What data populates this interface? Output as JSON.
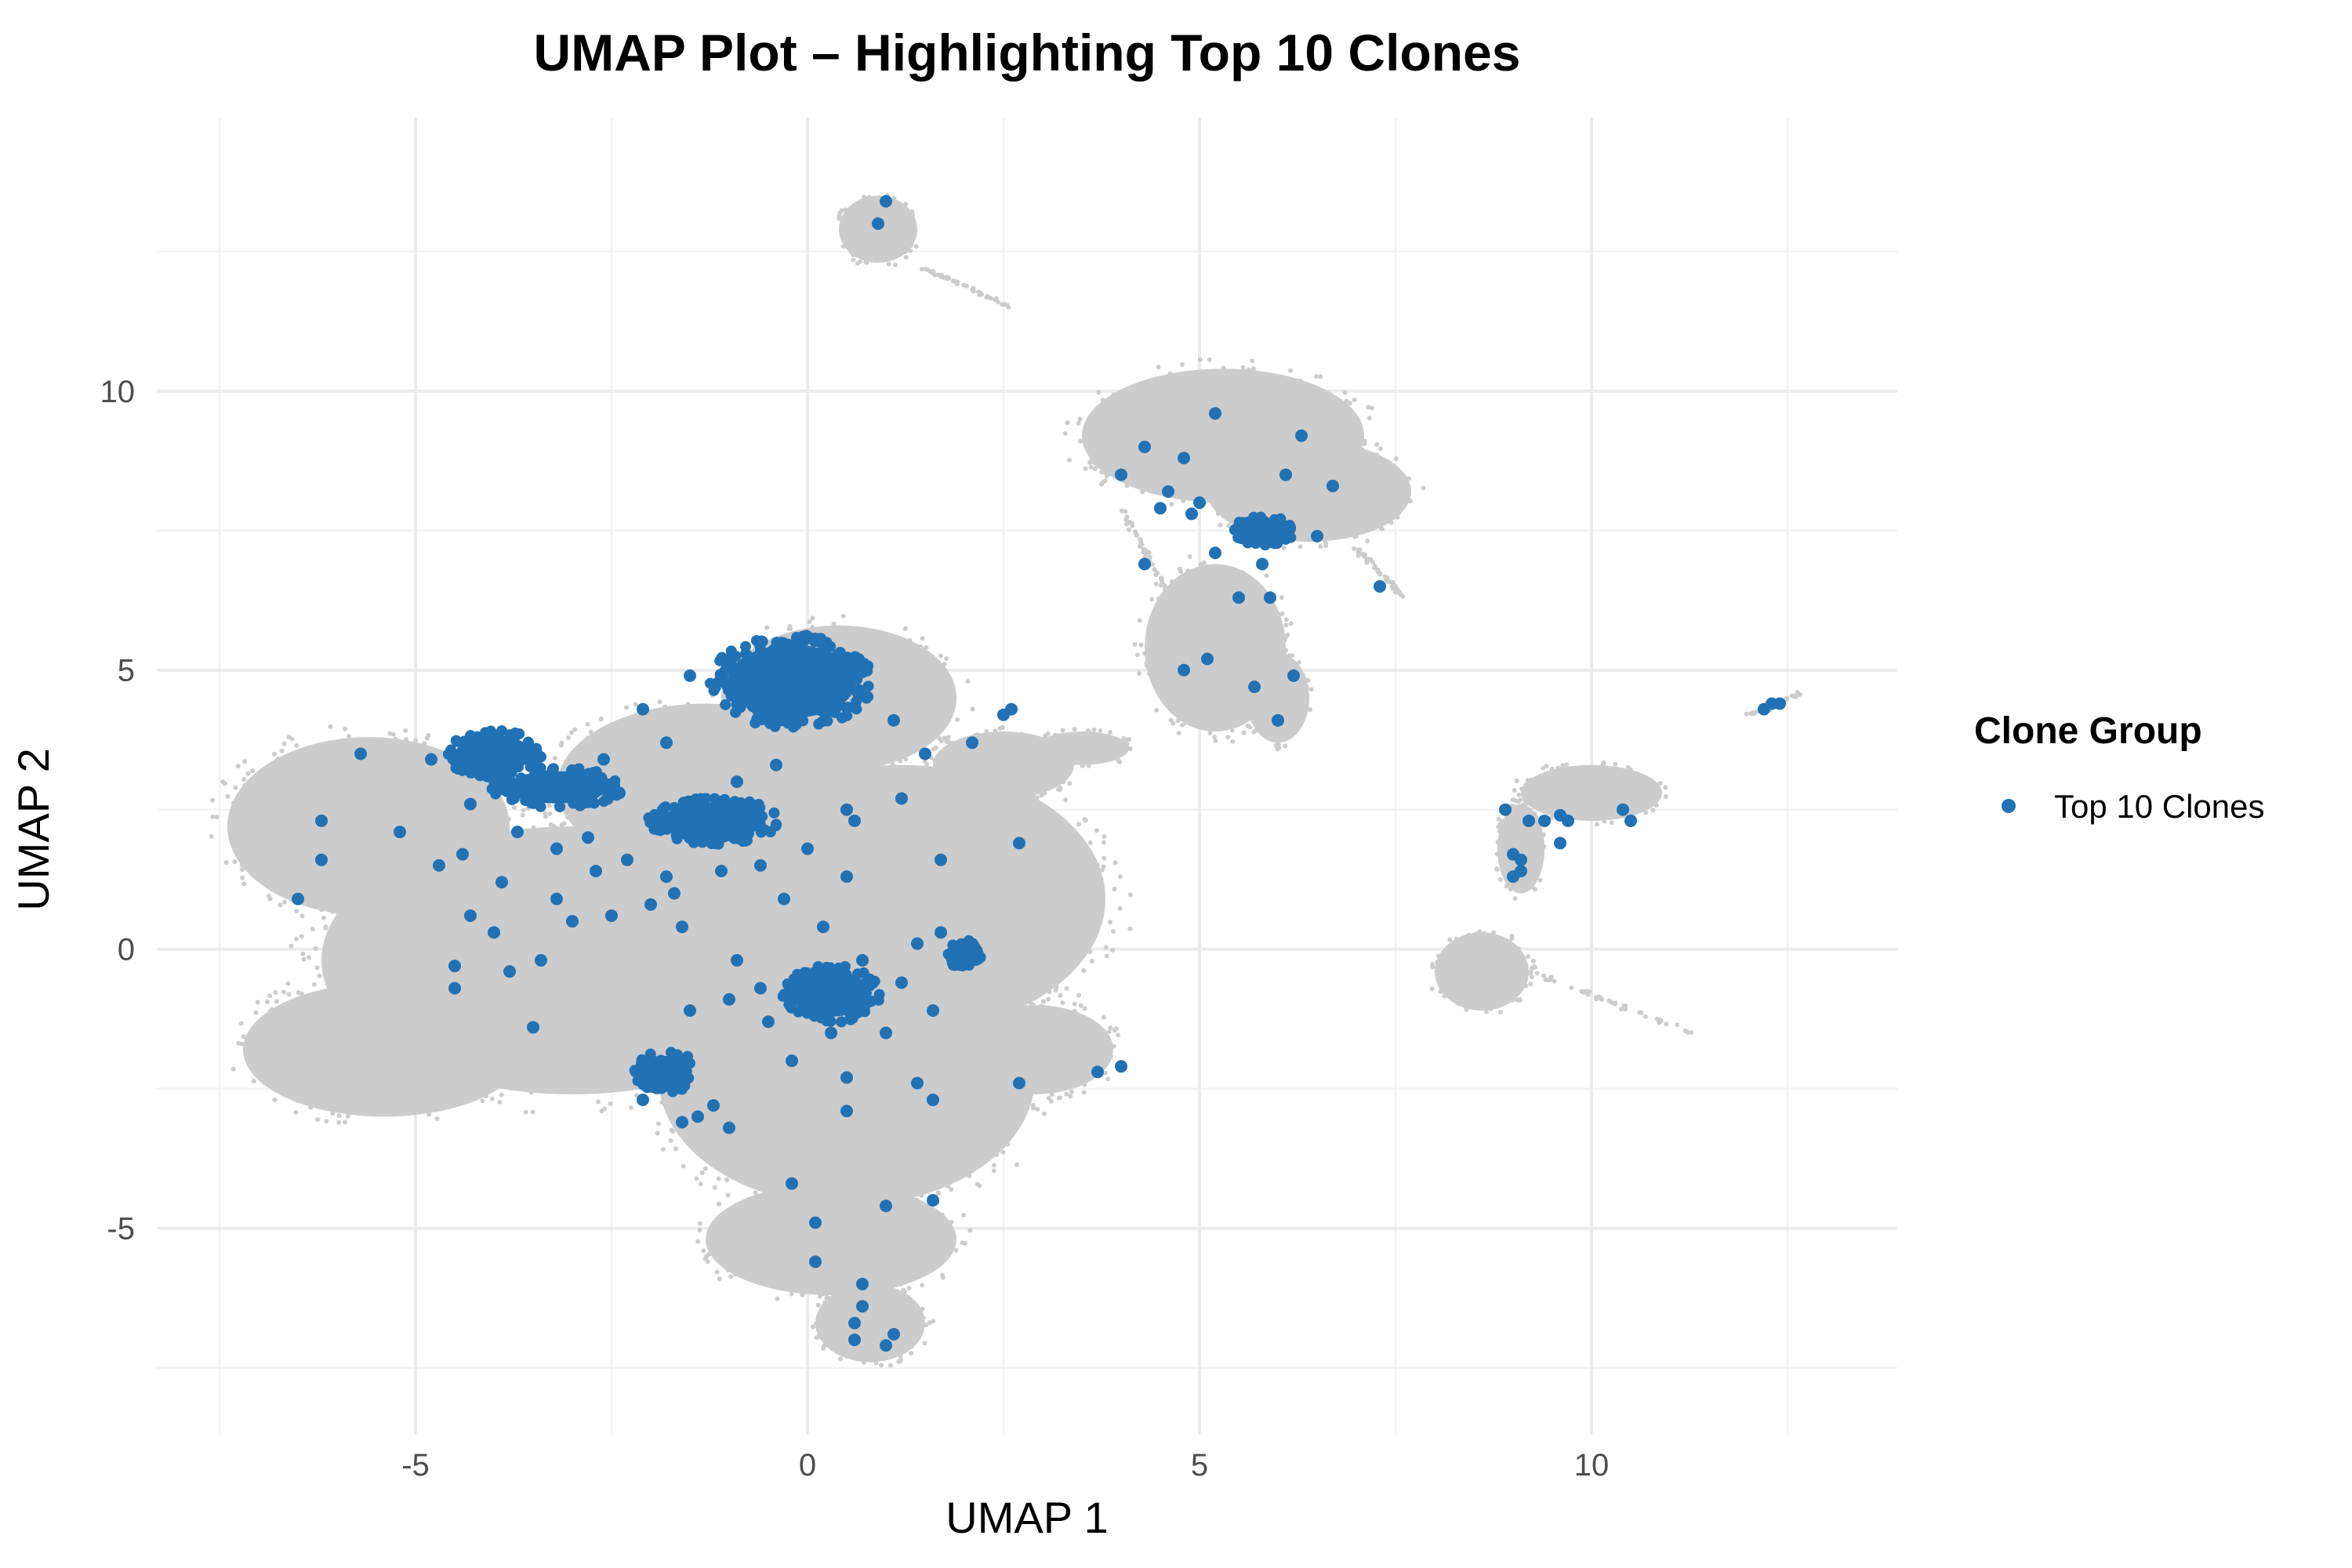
{
  "chart_data": {
    "type": "scatter",
    "title": "UMAP Plot – Highlighting Top 10 Clones",
    "xlabel": "UMAP 1",
    "ylabel": "UMAP 2",
    "xlim": [
      -8.3,
      13.9
    ],
    "ylim": [
      -8.7,
      14.9
    ],
    "x_ticks": [
      -5,
      0,
      5,
      10
    ],
    "y_ticks": [
      -5,
      0,
      5,
      10
    ],
    "grid": true,
    "legend": {
      "title": "Clone Group",
      "placement": "right",
      "entries": [
        {
          "name": "Top 10 Clones",
          "color": "#2171b5"
        }
      ]
    },
    "colors": {
      "background_cells": "#cccccc",
      "highlight": "#2171b5"
    },
    "background_regions": [
      {
        "cx": -3.0,
        "cy": -0.2,
        "rx": 3.2,
        "ry": 2.4
      },
      {
        "cx": -5.6,
        "cy": 2.2,
        "rx": 1.8,
        "ry": 1.6
      },
      {
        "cx": -5.4,
        "cy": -1.8,
        "rx": 1.8,
        "ry": 1.2
      },
      {
        "cx": 0.5,
        "cy": -2.3,
        "rx": 2.4,
        "ry": 2.3
      },
      {
        "cx": 1.2,
        "cy": 0.9,
        "rx": 2.6,
        "ry": 2.4
      },
      {
        "cx": -1.3,
        "cy": 2.9,
        "rx": 1.9,
        "ry": 1.5
      },
      {
        "cx": 0.4,
        "cy": 4.5,
        "rx": 1.5,
        "ry": 1.3
      },
      {
        "cx": 0.3,
        "cy": -5.2,
        "rx": 1.6,
        "ry": 1.0
      },
      {
        "cx": 0.8,
        "cy": -6.7,
        "rx": 0.7,
        "ry": 0.7
      },
      {
        "cx": 2.9,
        "cy": -1.8,
        "rx": 1.0,
        "ry": 0.8
      },
      {
        "cx": 2.5,
        "cy": 3.3,
        "rx": 0.9,
        "ry": 0.6
      },
      {
        "cx": 3.5,
        "cy": 3.6,
        "rx": 0.6,
        "ry": 0.3
      },
      {
        "cx": 5.3,
        "cy": 9.2,
        "rx": 1.8,
        "ry": 1.2
      },
      {
        "cx": 6.4,
        "cy": 8.2,
        "rx": 1.3,
        "ry": 0.9
      },
      {
        "cx": 4.6,
        "cy": 8.8,
        "rx": 1.0,
        "ry": 0.4
      },
      {
        "cx": 5.2,
        "cy": 5.4,
        "rx": 0.9,
        "ry": 1.5
      },
      {
        "cx": 6.0,
        "cy": 4.5,
        "rx": 0.4,
        "ry": 0.8
      },
      {
        "cx": 10.0,
        "cy": 2.8,
        "rx": 0.9,
        "ry": 0.5
      },
      {
        "cx": 9.1,
        "cy": 1.8,
        "rx": 0.3,
        "ry": 0.8
      },
      {
        "cx": 8.6,
        "cy": -0.4,
        "rx": 0.6,
        "ry": 0.7
      },
      {
        "cx": 0.9,
        "cy": 12.9,
        "rx": 0.5,
        "ry": 0.6
      }
    ],
    "background_streaks": [
      {
        "x": [
          7.0,
          7.6
        ],
        "y": [
          7.2,
          6.3
        ]
      },
      {
        "x": [
          1.5,
          2.6
        ],
        "y": [
          12.2,
          11.5
        ]
      },
      {
        "x": [
          9.2,
          11.3
        ],
        "y": [
          -0.4,
          -1.5
        ]
      },
      {
        "x": [
          12.0,
          12.7
        ],
        "y": [
          4.2,
          4.6
        ]
      },
      {
        "x": [
          4.0,
          4.6
        ],
        "y": [
          7.9,
          6.4
        ]
      }
    ],
    "highlight_clusters": [
      {
        "cx": -0.2,
        "cy": 4.8,
        "rx": 1.0,
        "ry": 0.8
      },
      {
        "cx": -4.0,
        "cy": 3.5,
        "rx": 0.6,
        "ry": 0.4
      },
      {
        "cx": -3.2,
        "cy": 2.9,
        "rx": 0.8,
        "ry": 0.35
      },
      {
        "cx": -1.2,
        "cy": 2.3,
        "rx": 0.8,
        "ry": 0.4
      },
      {
        "cx": -1.8,
        "cy": -2.2,
        "rx": 0.4,
        "ry": 0.35
      },
      {
        "cx": 0.3,
        "cy": -0.8,
        "rx": 0.6,
        "ry": 0.5
      },
      {
        "cx": 2.0,
        "cy": -0.1,
        "rx": 0.2,
        "ry": 0.25
      },
      {
        "cx": 5.8,
        "cy": 7.5,
        "rx": 0.4,
        "ry": 0.25
      }
    ],
    "highlight_points": [
      {
        "x": 1.0,
        "y": 13.4
      },
      {
        "x": 0.9,
        "y": 13.0
      },
      {
        "x": 5.2,
        "y": 9.6
      },
      {
        "x": 4.3,
        "y": 9.0
      },
      {
        "x": 6.3,
        "y": 9.2
      },
      {
        "x": 4.0,
        "y": 8.5
      },
      {
        "x": 4.8,
        "y": 8.8
      },
      {
        "x": 6.7,
        "y": 8.3
      },
      {
        "x": 6.1,
        "y": 8.5
      },
      {
        "x": 4.6,
        "y": 8.2
      },
      {
        "x": 5.0,
        "y": 8.0
      },
      {
        "x": 4.9,
        "y": 7.8
      },
      {
        "x": 4.5,
        "y": 7.9
      },
      {
        "x": 5.6,
        "y": 7.5
      },
      {
        "x": 5.9,
        "y": 7.3
      },
      {
        "x": 6.5,
        "y": 7.4
      },
      {
        "x": 4.3,
        "y": 6.9
      },
      {
        "x": 5.2,
        "y": 7.1
      },
      {
        "x": 5.8,
        "y": 6.9
      },
      {
        "x": 7.3,
        "y": 6.5
      },
      {
        "x": 5.5,
        "y": 6.3
      },
      {
        "x": 5.9,
        "y": 6.3
      },
      {
        "x": 5.1,
        "y": 5.2
      },
      {
        "x": 4.8,
        "y": 5.0
      },
      {
        "x": 6.2,
        "y": 4.9
      },
      {
        "x": 5.7,
        "y": 4.7
      },
      {
        "x": 6.0,
        "y": 4.1
      },
      {
        "x": 12.3,
        "y": 4.4
      },
      {
        "x": 12.4,
        "y": 4.4
      },
      {
        "x": 12.2,
        "y": 4.3
      },
      {
        "x": 8.9,
        "y": 2.5
      },
      {
        "x": 9.2,
        "y": 2.3
      },
      {
        "x": 9.4,
        "y": 2.3
      },
      {
        "x": 9.6,
        "y": 2.4
      },
      {
        "x": 9.7,
        "y": 2.3
      },
      {
        "x": 10.4,
        "y": 2.5
      },
      {
        "x": 10.5,
        "y": 2.3
      },
      {
        "x": 9.6,
        "y": 1.9
      },
      {
        "x": 9.0,
        "y": 1.7
      },
      {
        "x": 9.1,
        "y": 1.6
      },
      {
        "x": 9.1,
        "y": 1.4
      },
      {
        "x": 9.0,
        "y": 1.3
      },
      {
        "x": -5.7,
        "y": 3.5
      },
      {
        "x": -4.8,
        "y": 3.4
      },
      {
        "x": -6.2,
        "y": 2.3
      },
      {
        "x": -5.2,
        "y": 2.1
      },
      {
        "x": -6.2,
        "y": 1.6
      },
      {
        "x": -4.7,
        "y": 1.5
      },
      {
        "x": -6.5,
        "y": 0.9
      },
      {
        "x": -4.4,
        "y": 1.7
      },
      {
        "x": -4.3,
        "y": 0.6
      },
      {
        "x": -4.5,
        "y": -0.3
      },
      {
        "x": -4.5,
        "y": -0.7
      },
      {
        "x": -4.0,
        "y": 0.3
      },
      {
        "x": -3.8,
        "y": -0.4
      },
      {
        "x": -3.4,
        "y": -0.2
      },
      {
        "x": -3.5,
        "y": -1.4
      },
      {
        "x": -3.9,
        "y": 1.2
      },
      {
        "x": -3.2,
        "y": 0.9
      },
      {
        "x": -3.0,
        "y": 0.5
      },
      {
        "x": -2.7,
        "y": 1.4
      },
      {
        "x": -2.5,
        "y": 0.6
      },
      {
        "x": -2.3,
        "y": 1.6
      },
      {
        "x": -2.0,
        "y": 0.8
      },
      {
        "x": -1.8,
        "y": 1.3
      },
      {
        "x": -1.6,
        "y": 0.4
      },
      {
        "x": -2.8,
        "y": 2.0
      },
      {
        "x": -3.2,
        "y": 1.8
      },
      {
        "x": -3.7,
        "y": 2.1
      },
      {
        "x": -4.3,
        "y": 2.6
      },
      {
        "x": -2.1,
        "y": 4.3
      },
      {
        "x": -1.5,
        "y": 4.9
      },
      {
        "x": -1.8,
        "y": 3.7
      },
      {
        "x": -0.9,
        "y": 3.0
      },
      {
        "x": -0.4,
        "y": 3.3
      },
      {
        "x": 0.5,
        "y": 2.5
      },
      {
        "x": 1.2,
        "y": 2.7
      },
      {
        "x": 0.6,
        "y": 2.3
      },
      {
        "x": 1.1,
        "y": 4.1
      },
      {
        "x": 1.5,
        "y": 3.5
      },
      {
        "x": 2.1,
        "y": 3.7
      },
      {
        "x": 2.5,
        "y": 4.2
      },
      {
        "x": 2.6,
        "y": 4.3
      },
      {
        "x": 2.7,
        "y": 1.9
      },
      {
        "x": 1.7,
        "y": 1.6
      },
      {
        "x": 1.4,
        "y": 0.1
      },
      {
        "x": 1.7,
        "y": 0.3
      },
      {
        "x": 1.2,
        "y": -0.6
      },
      {
        "x": 1.6,
        "y": -1.1
      },
      {
        "x": 1.0,
        "y": -1.5
      },
      {
        "x": 0.5,
        "y": 1.3
      },
      {
        "x": -0.6,
        "y": 1.5
      },
      {
        "x": -1.1,
        "y": 1.4
      },
      {
        "x": -1.7,
        "y": 1.0
      },
      {
        "x": -0.9,
        "y": -0.2
      },
      {
        "x": -0.6,
        "y": -0.7
      },
      {
        "x": -1.0,
        "y": -0.9
      },
      {
        "x": -1.5,
        "y": -1.1
      },
      {
        "x": -0.5,
        "y": -1.3
      },
      {
        "x": 0.7,
        "y": -0.2
      },
      {
        "x": 0.3,
        "y": -1.5
      },
      {
        "x": -0.2,
        "y": -2.0
      },
      {
        "x": 0.5,
        "y": -2.3
      },
      {
        "x": 1.4,
        "y": -2.4
      },
      {
        "x": 1.6,
        "y": -2.7
      },
      {
        "x": -1.2,
        "y": -2.8
      },
      {
        "x": -1.0,
        "y": -3.2
      },
      {
        "x": -1.4,
        "y": -3.0
      },
      {
        "x": -1.6,
        "y": -3.1
      },
      {
        "x": -2.1,
        "y": -2.7
      },
      {
        "x": -2.0,
        "y": -2.4
      },
      {
        "x": 2.7,
        "y": -2.4
      },
      {
        "x": 3.7,
        "y": -2.2
      },
      {
        "x": 4.0,
        "y": -2.1
      },
      {
        "x": 0.5,
        "y": -2.9
      },
      {
        "x": -0.2,
        "y": -4.2
      },
      {
        "x": 1.0,
        "y": -4.6
      },
      {
        "x": 1.6,
        "y": -4.5
      },
      {
        "x": 0.1,
        "y": -4.9
      },
      {
        "x": 0.1,
        "y": -5.6
      },
      {
        "x": 0.7,
        "y": -6.0
      },
      {
        "x": 0.7,
        "y": -6.4
      },
      {
        "x": 0.6,
        "y": -6.7
      },
      {
        "x": 1.1,
        "y": -6.9
      },
      {
        "x": 0.6,
        "y": -7.0
      },
      {
        "x": 1.0,
        "y": -7.1
      },
      {
        "x": 0.0,
        "y": 1.8
      },
      {
        "x": 0.2,
        "y": 0.4
      },
      {
        "x": -0.3,
        "y": 0.9
      },
      {
        "x": -2.4,
        "y": 2.8
      },
      {
        "x": -2.6,
        "y": 3.4
      },
      {
        "x": -3.0,
        "y": 3.2
      }
    ]
  }
}
